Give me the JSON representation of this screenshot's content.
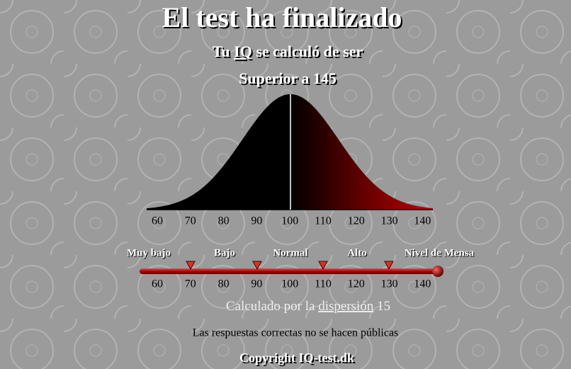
{
  "title": "El test ha finalizado",
  "result": {
    "prefix": "Tu",
    "iq_link": "IQ",
    "suffix": "se calculó de ser",
    "score": "Superior a 145"
  },
  "curve_axis": {
    "ticks": [
      60,
      70,
      80,
      90,
      100,
      110,
      120,
      130,
      140
    ]
  },
  "scale": {
    "levels": [
      "Muy bajo",
      "Bajo",
      "Normal",
      "Alto",
      "Nivel de Mensa"
    ],
    "ticks": [
      60,
      70,
      80,
      90,
      100,
      110,
      120,
      130,
      140
    ]
  },
  "dispersion": {
    "prefix": "Calculado por la",
    "link": "dispersión",
    "value": 15
  },
  "note": "Las respuestas correctas no se hacen públicas",
  "footer": "Copyright IQ-test.dk"
}
